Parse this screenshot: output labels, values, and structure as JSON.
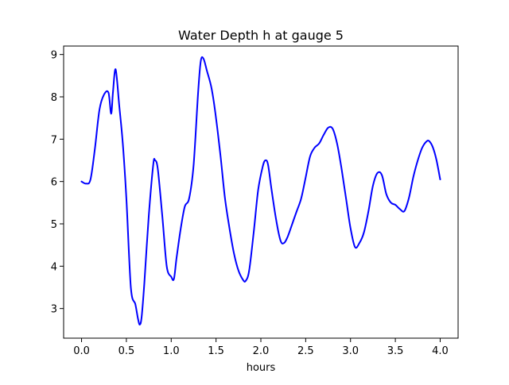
{
  "chart_data": {
    "type": "line",
    "title": "Water Depth h at gauge 5",
    "xlabel": "hours",
    "ylabel": "",
    "xlim": [
      -0.2,
      4.2
    ],
    "ylim": [
      2.3,
      9.2
    ],
    "xticks": [
      0.0,
      0.5,
      1.0,
      1.5,
      2.0,
      2.5,
      3.0,
      3.5,
      4.0
    ],
    "xtick_labels": [
      "0.0",
      "0.5",
      "1.0",
      "1.5",
      "2.0",
      "2.5",
      "3.0",
      "3.5",
      "4.0"
    ],
    "yticks": [
      3,
      4,
      5,
      6,
      7,
      8,
      9
    ],
    "ytick_labels": [
      "3",
      "4",
      "5",
      "6",
      "7",
      "8",
      "9"
    ],
    "grid": false,
    "series": [
      {
        "color": "#0000ff",
        "x": [
          0.0,
          0.05,
          0.1,
          0.15,
          0.2,
          0.25,
          0.3,
          0.33,
          0.35,
          0.38,
          0.42,
          0.46,
          0.5,
          0.55,
          0.6,
          0.63,
          0.65,
          0.67,
          0.7,
          0.75,
          0.8,
          0.82,
          0.85,
          0.9,
          0.95,
          1.0,
          1.03,
          1.06,
          1.1,
          1.15,
          1.2,
          1.25,
          1.3,
          1.33,
          1.36,
          1.4,
          1.45,
          1.5,
          1.55,
          1.6,
          1.65,
          1.7,
          1.75,
          1.8,
          1.83,
          1.87,
          1.92,
          1.97,
          2.02,
          2.05,
          2.08,
          2.12,
          2.17,
          2.22,
          2.26,
          2.3,
          2.35,
          2.4,
          2.45,
          2.5,
          2.55,
          2.6,
          2.65,
          2.7,
          2.75,
          2.8,
          2.85,
          2.9,
          2.95,
          3.0,
          3.05,
          3.1,
          3.15,
          3.2,
          3.25,
          3.3,
          3.35,
          3.4,
          3.45,
          3.5,
          3.55,
          3.6,
          3.65,
          3.7,
          3.75,
          3.8,
          3.85,
          3.88,
          3.92,
          3.96,
          4.0
        ],
        "y": [
          6.0,
          5.95,
          6.05,
          6.8,
          7.7,
          8.05,
          8.1,
          7.6,
          8.1,
          8.65,
          7.8,
          6.9,
          5.6,
          3.5,
          3.1,
          2.75,
          2.62,
          2.8,
          3.6,
          5.2,
          6.4,
          6.5,
          6.3,
          5.2,
          4.0,
          3.75,
          3.7,
          4.2,
          4.8,
          5.4,
          5.6,
          6.4,
          8.1,
          8.85,
          8.9,
          8.6,
          8.2,
          7.5,
          6.6,
          5.6,
          4.9,
          4.3,
          3.9,
          3.68,
          3.65,
          3.9,
          4.8,
          5.8,
          6.35,
          6.5,
          6.4,
          5.8,
          5.1,
          4.6,
          4.55,
          4.7,
          5.0,
          5.3,
          5.6,
          6.1,
          6.6,
          6.8,
          6.9,
          7.1,
          7.27,
          7.25,
          6.9,
          6.3,
          5.6,
          4.9,
          4.45,
          4.55,
          4.8,
          5.3,
          5.9,
          6.2,
          6.15,
          5.7,
          5.5,
          5.45,
          5.35,
          5.3,
          5.6,
          6.1,
          6.5,
          6.8,
          6.95,
          6.95,
          6.8,
          6.5,
          6.05
        ]
      }
    ]
  }
}
